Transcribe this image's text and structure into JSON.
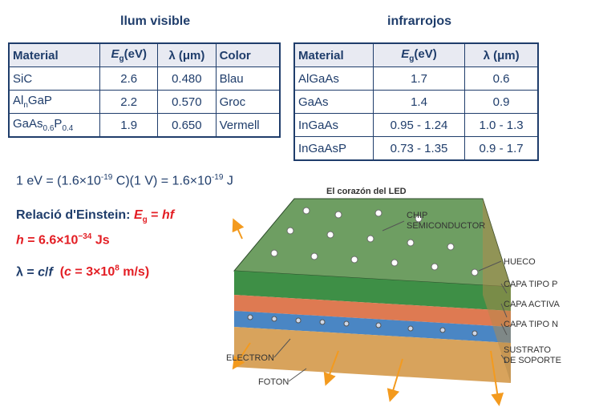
{
  "visible": {
    "title": "llum visible",
    "headers": [
      "Material",
      "Eg(eV)",
      "λ (μm)",
      "Color"
    ],
    "rows": [
      {
        "material": "SiC",
        "eg": "2.6",
        "lambda": "0.480",
        "color": "Blau"
      },
      {
        "material": "AlnGaP",
        "eg": "2.2",
        "lambda": "0.570",
        "color": "Groc"
      },
      {
        "material": "GaAs0.6P0.4",
        "eg": "1.9",
        "lambda": "0.650",
        "color": "Vermell"
      }
    ]
  },
  "infrared": {
    "title": "infrarrojos",
    "headers": [
      "Material",
      "Eg(eV)",
      "λ (μm)"
    ],
    "rows": [
      {
        "material": "AlGaAs",
        "eg": "1.7",
        "lambda": "0.6"
      },
      {
        "material": "GaAs",
        "eg": "1.4",
        "lambda": "0.9"
      },
      {
        "material": "InGaAs",
        "eg": "0.95 - 1.24",
        "lambda": "1.0 - 1.3"
      },
      {
        "material": "InGaAsP",
        "eg": "0.73 - 1.35",
        "lambda": "0.9 - 1.7"
      }
    ]
  },
  "formulas": {
    "ev_conversion": "1 eV = (1.6×10-19 C)(1 V) = 1.6×10-19 J",
    "einstein_label": "Relació d'Einstein:",
    "einstein_formula": "Eg = hf",
    "planck": "h = 6.6×10−34 Js",
    "lambda_eq": "λ = c/f",
    "c_value": "(c = 3×108 m/s)"
  },
  "diagram": {
    "title": "El corazón del LED",
    "labels": {
      "chip": [
        "CHIP",
        "SEMICONDUCTOR"
      ],
      "hueco": "HUECO",
      "capa_p": "CAPA TIPO P",
      "capa_activa": "CAPA ACTIVA",
      "capa_n": "CAPA TIPO N",
      "sustrato": [
        "SUSTRATO",
        "DE SOPORTE"
      ],
      "electron": "ELECTRON",
      "foton": "FOTON"
    },
    "colors": {
      "top": "#6e9e62",
      "p": "#3e8f46",
      "active": "#de7a52",
      "n": "#4a86c4",
      "substrate": "#d8a35c"
    }
  }
}
